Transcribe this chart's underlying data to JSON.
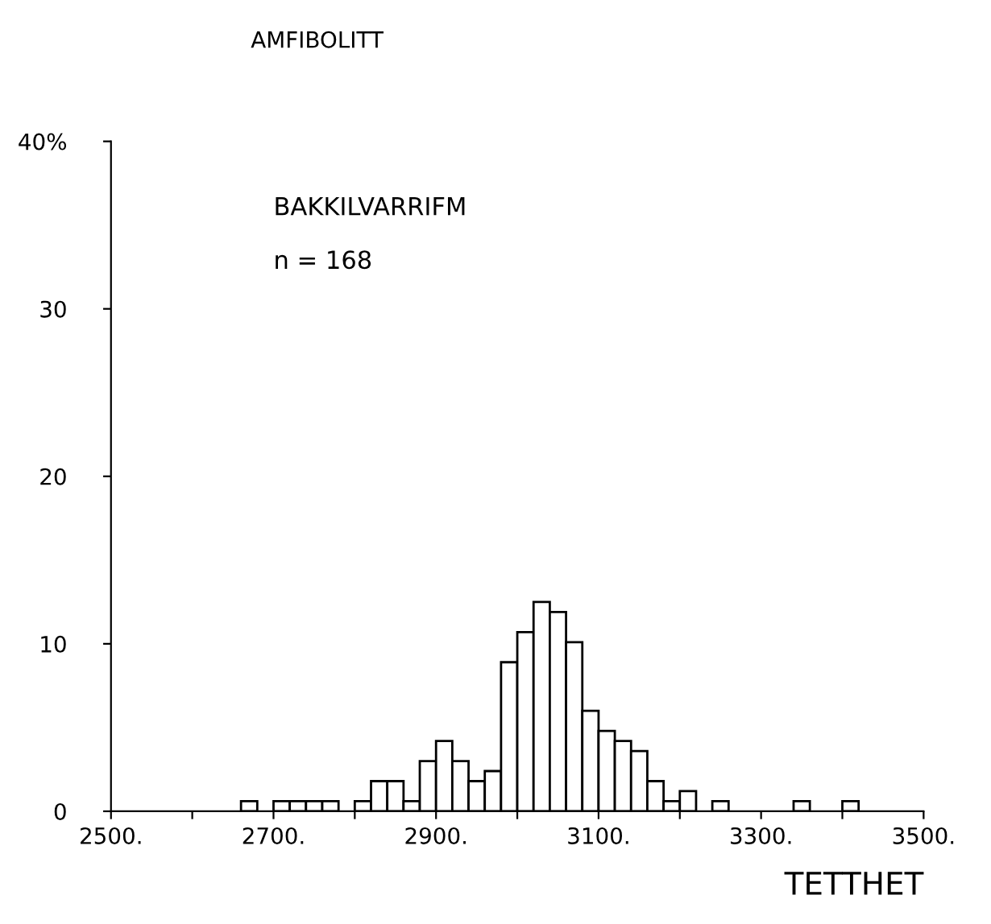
{
  "chart_data": {
    "type": "histogram",
    "title": "AMFIBOLITT",
    "xlabel": "TETTHET",
    "annotations": [
      "BAKKILVARRIFM",
      "n = 168"
    ],
    "bins": [
      2500,
      2520,
      2540,
      2560,
      2580,
      2600,
      2620,
      2640,
      2660,
      2680,
      2700,
      2720,
      2740,
      2760,
      2780,
      2800,
      2820,
      2840,
      2860,
      2880,
      2900,
      2920,
      2940,
      2960,
      2980,
      3000,
      3020,
      3040,
      3060,
      3080,
      3100,
      3120,
      3140,
      3160,
      3180,
      3200,
      3220,
      3240,
      3260,
      3280,
      3300,
      3320,
      3340,
      3360,
      3380,
      3400,
      3420,
      3440,
      3460,
      3480,
      3500
    ],
    "values": [
      0,
      0,
      0,
      0,
      0,
      0,
      0,
      0,
      0.6,
      0,
      0.6,
      0.6,
      0.6,
      0.6,
      0,
      0.6,
      1.8,
      1.8,
      0.6,
      3.0,
      4.2,
      3.0,
      1.8,
      2.4,
      8.9,
      10.7,
      12.5,
      11.9,
      10.1,
      6.0,
      4.8,
      4.2,
      3.6,
      1.8,
      0.6,
      1.2,
      0,
      0.6,
      0,
      0,
      0,
      0,
      0.6,
      0,
      0,
      0.6,
      0,
      0,
      0,
      0
    ],
    "color": "#ffffff",
    "xlim": [
      2500,
      3500
    ],
    "xticks": [
      {
        "value": 2500,
        "label": "2500."
      },
      {
        "value": 2600,
        "label": null
      },
      {
        "value": 2700,
        "label": "2700."
      },
      {
        "value": 2800,
        "label": null
      },
      {
        "value": 2900,
        "label": "2900."
      },
      {
        "value": 3000,
        "label": null
      },
      {
        "value": 3100,
        "label": "3100."
      },
      {
        "value": 3200,
        "label": null
      },
      {
        "value": 3300,
        "label": "3300."
      },
      {
        "value": 3400,
        "label": null
      },
      {
        "value": 3500,
        "label": "3500."
      }
    ],
    "ylim": [
      0,
      40
    ],
    "yticks": [
      0,
      10,
      20,
      30,
      {
        "value": 40,
        "label": "40%"
      }
    ],
    "grid": false,
    "legend": false
  }
}
